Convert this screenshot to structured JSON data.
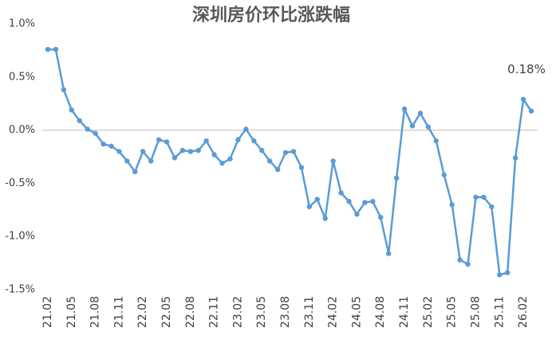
{
  "chart_data": {
    "type": "line",
    "title": "深圳房价环比涨跌幅",
    "categories": [
      "21.02",
      null,
      null,
      "21.05",
      null,
      null,
      "21.08",
      null,
      null,
      "21.11",
      null,
      null,
      "22.02",
      null,
      null,
      "22.05",
      null,
      null,
      "22.08",
      null,
      null,
      "22.11",
      null,
      null,
      "23.02",
      null,
      null,
      "23.05",
      null,
      null,
      "23.08",
      null,
      null,
      "23.11",
      null,
      null,
      "24.02",
      null,
      null,
      "24.05",
      null,
      null,
      "24.08",
      null,
      null,
      "24.11",
      null,
      null,
      "25.02",
      null,
      null,
      "25.05",
      null,
      null,
      "25.08",
      null,
      null,
      "25.11",
      null,
      null,
      "26.02",
      null
    ],
    "values": [
      0.76,
      0.76,
      0.38,
      0.19,
      0.09,
      0.01,
      -0.03,
      -0.13,
      -0.15,
      -0.2,
      -0.29,
      -0.39,
      -0.2,
      -0.29,
      -0.09,
      -0.11,
      -0.26,
      -0.19,
      -0.2,
      -0.19,
      -0.1,
      -0.23,
      -0.31,
      -0.27,
      -0.09,
      0.01,
      -0.1,
      -0.19,
      -0.29,
      -0.37,
      -0.21,
      -0.2,
      -0.35,
      -0.72,
      -0.65,
      -0.83,
      -0.29,
      -0.59,
      -0.67,
      -0.79,
      -0.68,
      -0.67,
      -0.82,
      -1.16,
      -0.45,
      0.2,
      0.04,
      0.16,
      0.03,
      -0.1,
      -0.42,
      -0.7,
      -1.22,
      -1.26,
      -0.63,
      -0.63,
      -0.72,
      -1.36,
      -1.34,
      -0.26,
      0.29,
      0.18
    ],
    "value_labels": [
      null,
      null,
      null,
      null,
      null,
      null,
      null,
      null,
      null,
      null,
      null,
      null,
      null,
      null,
      null,
      null,
      null,
      null,
      null,
      null,
      null,
      null,
      null,
      null,
      null,
      null,
      null,
      null,
      null,
      null,
      null,
      null,
      null,
      null,
      null,
      null,
      null,
      null,
      null,
      null,
      null,
      null,
      null,
      null,
      null,
      null,
      null,
      null,
      null,
      null,
      null,
      null,
      null,
      null,
      null,
      null,
      null,
      null,
      null,
      null,
      null,
      "0.18%"
    ],
    "color": "#5b9bd5",
    "ylim": [
      -1.5,
      1.0
    ],
    "yticks": [
      {
        "value": 1.0,
        "label": "1.0%"
      },
      {
        "value": 0.5,
        "label": "0.5%"
      },
      {
        "value": 0.0,
        "label": "0.0%"
      },
      {
        "value": -0.5,
        "label": "-0.5%"
      },
      {
        "value": -1.0,
        "label": "-1.0%"
      },
      {
        "value": -1.5,
        "label": "-1.5%"
      }
    ],
    "grid": false
  }
}
